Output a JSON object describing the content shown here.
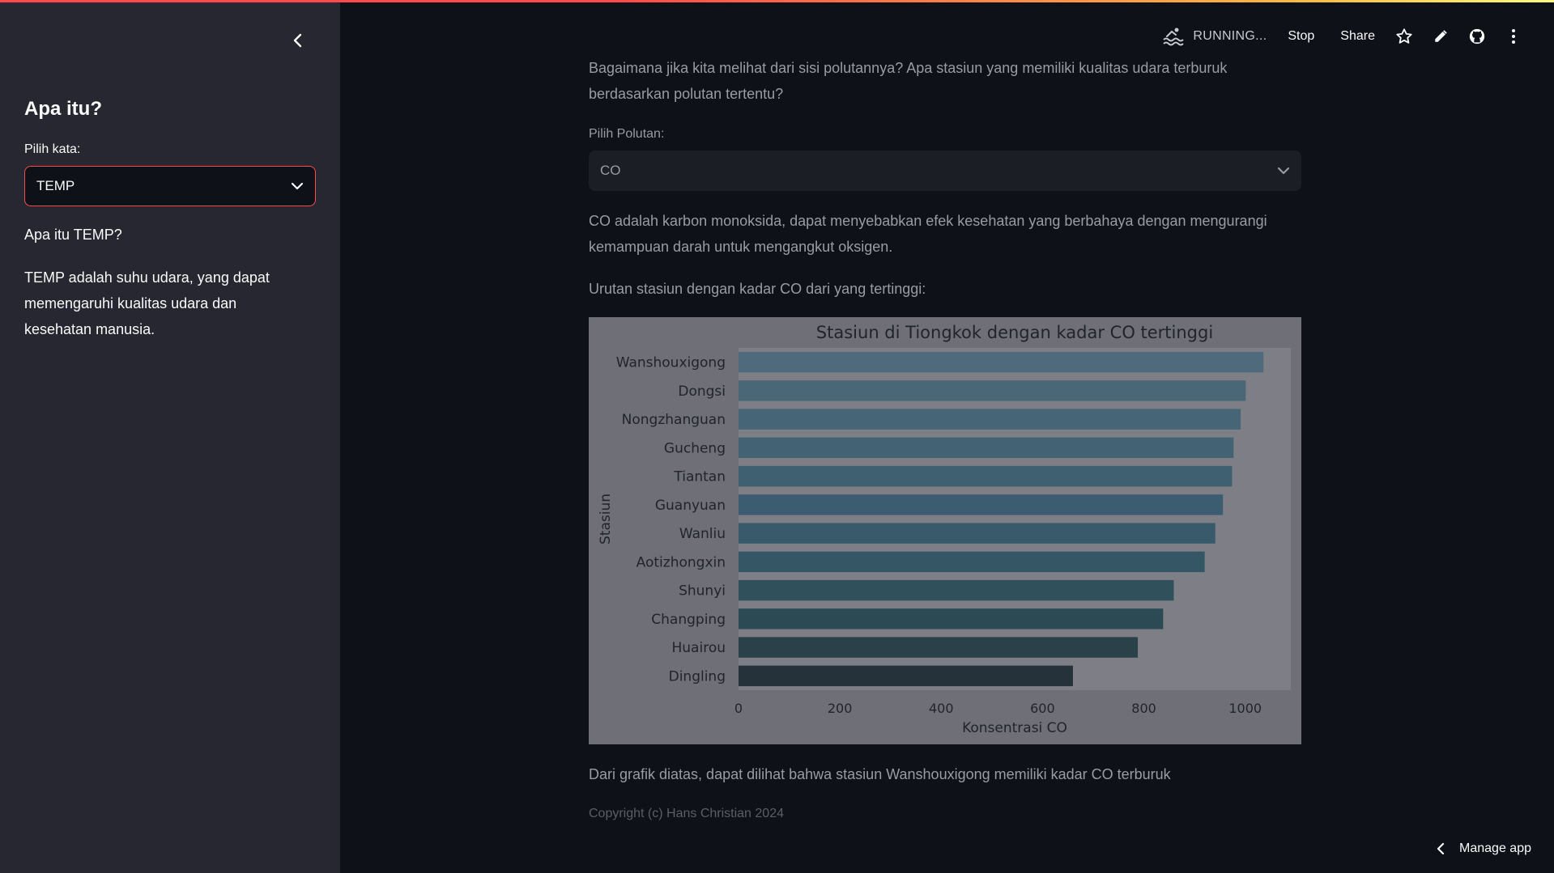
{
  "header": {
    "status_text": "RUNNING...",
    "stop_label": "Stop",
    "share_label": "Share"
  },
  "sidebar": {
    "title": "Apa itu?",
    "select_label": "Pilih kata:",
    "select_value": "TEMP",
    "question": "Apa itu TEMP?",
    "description": "TEMP adalah suhu udara, yang dapat memengaruhi kualitas udara dan kesehatan manusia."
  },
  "main": {
    "intro": "Bagaimana jika kita melihat dari sisi polutannya? Apa stasiun yang memiliki kualitas udara terburuk berdasarkan polutan tertentu?",
    "pollutant_label": "Pilih Polutan:",
    "pollutant_value": "CO",
    "pollutant_desc": "CO adalah karbon monoksida, dapat menyebabkan efek kesehatan yang berbahaya dengan mengurangi kemampuan darah untuk mengangkut oksigen.",
    "ranking_caption": "Urutan stasiun dengan kadar CO dari yang tertinggi:",
    "conclusion": "Dari grafik diatas, dapat dilihat bahwa stasiun Wanshouxigong memiliki kadar CO terburuk",
    "copyright": "Copyright (c) Hans Christian 2024"
  },
  "footer": {
    "manage_label": "Manage app"
  },
  "colors": {
    "accent": "#ff4b4b",
    "sidebar_bg": "#262730",
    "main_bg": "#0e1117"
  },
  "chart_data": {
    "type": "bar",
    "orientation": "horizontal",
    "title": "Stasiun di Tiongkok dengan kadar CO tertinggi",
    "xlabel": "Konsentrasi CO",
    "ylabel": "Stasiun",
    "categories": [
      "Wanshouxigong",
      "Dongsi",
      "Nongzhanguan",
      "Gucheng",
      "Tiantan",
      "Guanyuan",
      "Wanliu",
      "Aotizhongxin",
      "Shunyi",
      "Changping",
      "Huairou",
      "Dingling"
    ],
    "values": [
      1036,
      1001,
      991,
      977,
      974,
      956,
      941,
      920,
      859,
      838,
      788,
      660
    ],
    "xlim": [
      0,
      1090
    ],
    "xticks": [
      0,
      200,
      400,
      600,
      800,
      1000
    ],
    "bar_colors": [
      "#4e6a7b",
      "#4a6778",
      "#466576",
      "#436273",
      "#3f6071",
      "#3b5d6f",
      "#385a6b",
      "#345665",
      "#30505c",
      "#2c4a53",
      "#2a4149",
      "#25323a"
    ],
    "grid": false,
    "legend": "none"
  }
}
